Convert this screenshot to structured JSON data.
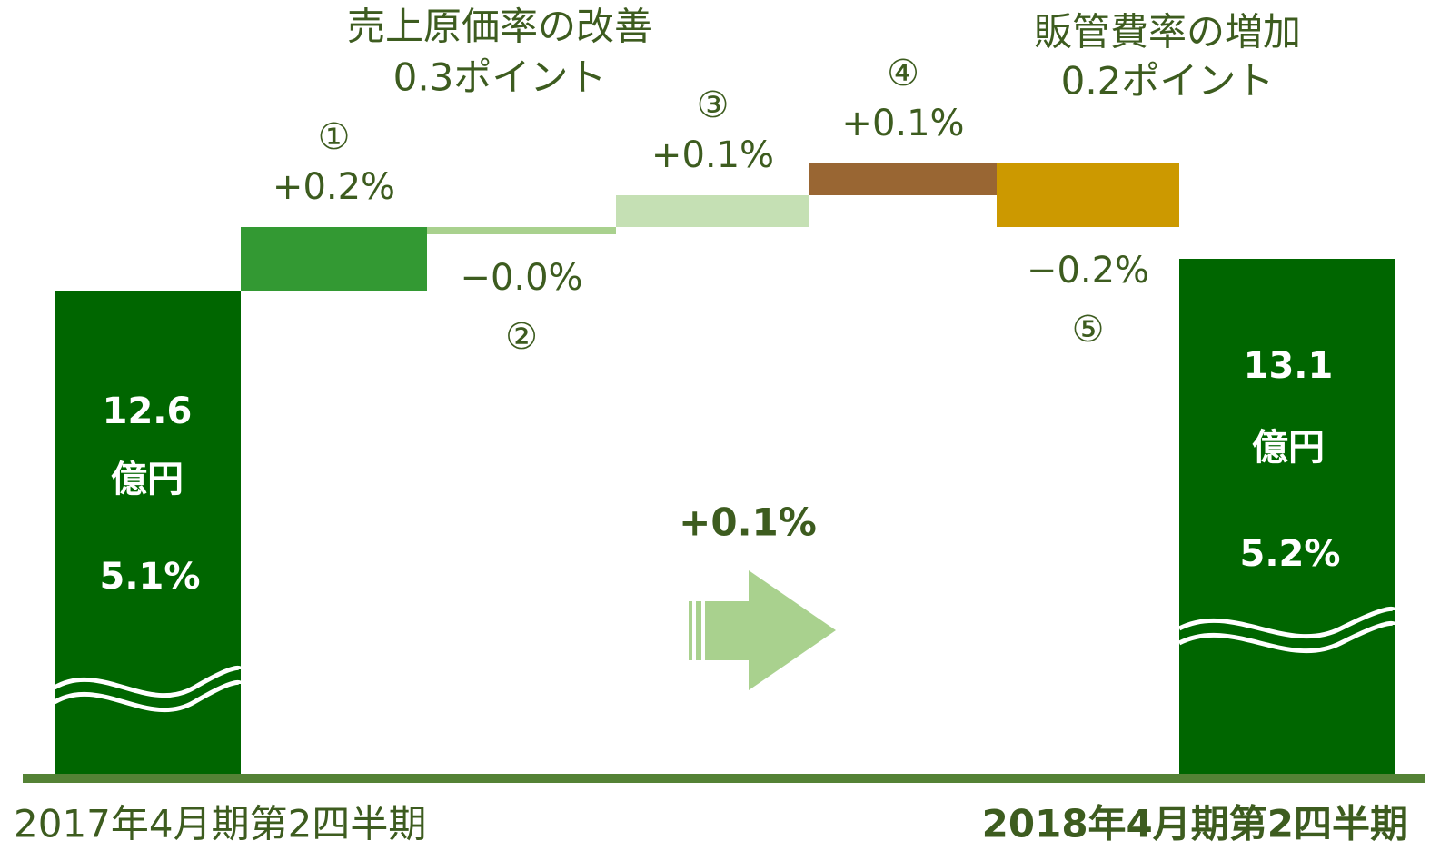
{
  "chart_data": {
    "type": "waterfall",
    "annotations": [
      {
        "text": "売上原価率の改善",
        "sub": "0.3ポイント"
      },
      {
        "text": "販管費率の増加",
        "sub": "0.2ポイント"
      }
    ],
    "start": {
      "label": "2017年4月期第2四半期",
      "amount": 12.6,
      "unit": "億円",
      "value": 5.1,
      "value_label": "5.1%",
      "color": "#006600"
    },
    "end": {
      "label": "2018年4月期第2四半期",
      "amount": 13.1,
      "unit": "億円",
      "value": 5.2,
      "value_label": "5.2%",
      "color": "#006600"
    },
    "categories": [
      "①",
      "②",
      "③",
      "④",
      "⑤"
    ],
    "values": [
      0.2,
      0,
      0.1,
      0.1,
      -0.2
    ],
    "value_labels": [
      "+0.2%",
      "−0.0%",
      "+0.1%",
      "+0.1%",
      "−0.2%"
    ],
    "colors": [
      "#339933",
      "#a9d18e",
      "#c5e0b4",
      "#996633",
      "#cc9900"
    ],
    "total_change": {
      "value": 0.1,
      "label": "+0.1%"
    }
  }
}
